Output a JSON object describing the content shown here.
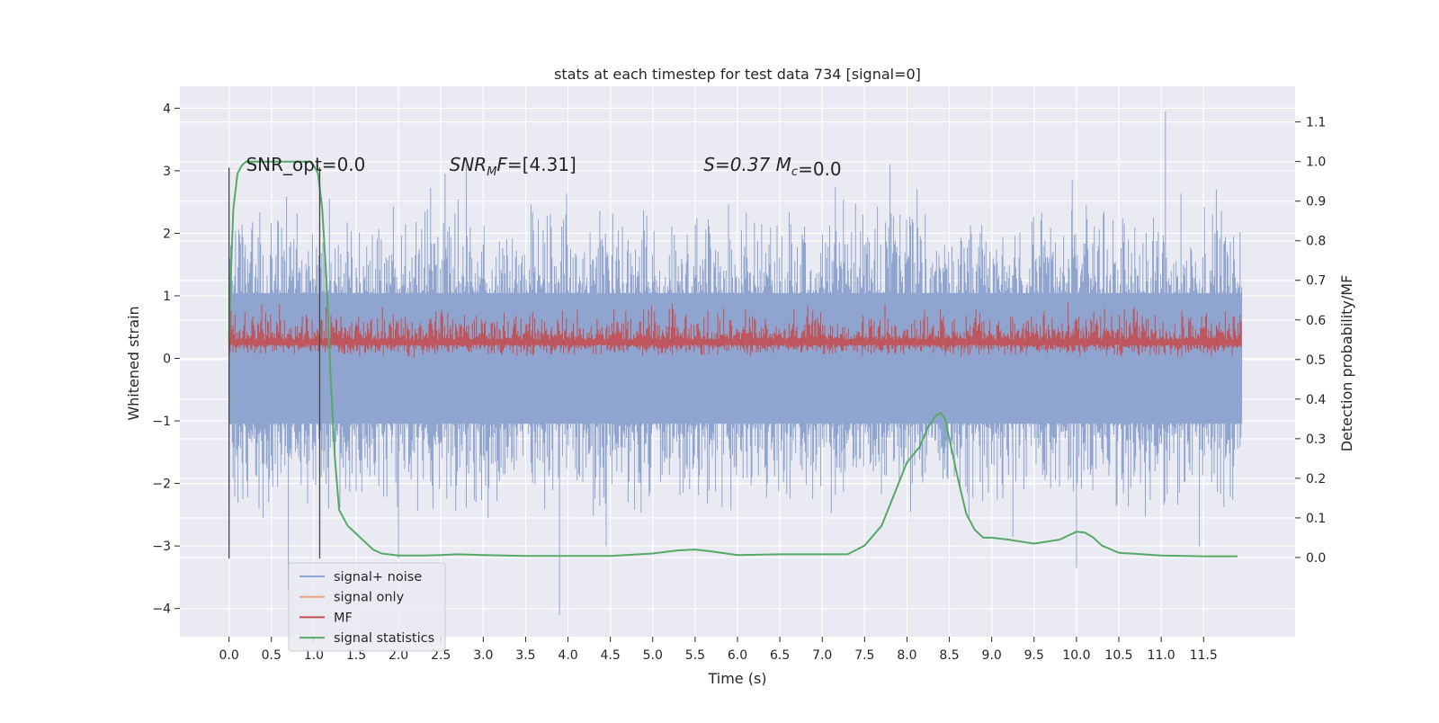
{
  "chart_data": {
    "type": "line",
    "title": "stats at each timestep for test data 734 [signal=0]",
    "xlabel": "Time (s)",
    "ylabel": "Whitened strain",
    "ylabel_right": "Detection probability/MF",
    "xlim": [
      -0.58,
      12.58
    ],
    "ylim": [
      -4.45,
      4.35
    ],
    "ylim_right": [
      -0.2,
      1.19
    ],
    "grid": true,
    "x_ticks": [
      0.0,
      0.5,
      1.0,
      1.5,
      2.0,
      2.5,
      3.0,
      3.5,
      4.0,
      4.5,
      5.0,
      5.5,
      6.0,
      6.5,
      7.0,
      7.5,
      8.0,
      8.5,
      9.0,
      9.5,
      10.0,
      10.5,
      11.0,
      11.5
    ],
    "x_tick_labels": [
      "0.0",
      "0.5",
      "1.0",
      "1.5",
      "2.0",
      "2.5",
      "3.0",
      "3.5",
      "4.0",
      "4.5",
      "5.0",
      "5.5",
      "6.0",
      "6.5",
      "7.0",
      "7.5",
      "8.0",
      "8.5",
      "9.0",
      "9.5",
      "10.0",
      "10.5",
      "11.0",
      "11.5"
    ],
    "y_ticks": [
      -4,
      -3,
      -2,
      -1,
      0,
      1,
      2,
      3,
      4
    ],
    "y_tick_labels": [
      "−4",
      "−3",
      "−2",
      "−1",
      "0",
      "1",
      "2",
      "3",
      "4"
    ],
    "y_ticks_right": [
      0.0,
      0.1,
      0.2,
      0.3,
      0.4,
      0.5,
      0.6,
      0.7,
      0.8,
      0.9,
      1.0,
      1.1
    ],
    "y_tick_labels_right": [
      "0.0",
      "0.1",
      "0.2",
      "0.3",
      "0.4",
      "0.5",
      "0.6",
      "0.7",
      "0.8",
      "0.9",
      "1.0",
      "1.1"
    ],
    "annotations": [
      {
        "text": "SNR_opt=0.0",
        "x": 0.2,
        "y": 3.0
      },
      {
        "text": "SNR",
        "sub": "M",
        "tail": "F=[4.31]",
        "x": 2.6,
        "y": 3.0
      },
      {
        "text": "S=0.37   M",
        "sub": "c",
        "tail": "=0.0",
        "x": 5.6,
        "y": 3.0
      }
    ],
    "vertical_lines": [
      {
        "x": 0.0,
        "y0": -3.2,
        "y1": 3.05
      },
      {
        "x": 1.07,
        "y0": -3.2,
        "y1": 3.05
      }
    ],
    "legend_position": "lower left",
    "series": [
      {
        "name": "signal+ noise",
        "color": "#8fa5cf",
        "axis": "left",
        "x_range": [
          0.0,
          11.95
        ],
        "typical_range": [
          -1.9,
          1.9
        ],
        "peaks": [
          {
            "x": 0.7,
            "y": -3.7
          },
          {
            "x": 2.0,
            "y": -3.2
          },
          {
            "x": 2.55,
            "y": 2.95
          },
          {
            "x": 2.8,
            "y": 3.1
          },
          {
            "x": 3.9,
            "y": -4.1
          },
          {
            "x": 4.45,
            "y": -3.0
          },
          {
            "x": 7.8,
            "y": 3.1
          },
          {
            "x": 9.25,
            "y": -2.85
          },
          {
            "x": 9.95,
            "y": 2.85
          },
          {
            "x": 10.0,
            "y": -3.35
          },
          {
            "x": 11.05,
            "y": 3.95
          },
          {
            "x": 11.45,
            "y": -3.0
          },
          {
            "x": 11.65,
            "y": 2.7
          }
        ]
      },
      {
        "name": "signal only",
        "color": "#e8a283",
        "axis": "left",
        "x": [
          0.0,
          11.95
        ],
        "y": [
          0.0,
          0.0
        ]
      },
      {
        "name": "MF",
        "color": "#c44e52",
        "axis": "left",
        "x_range": [
          0.0,
          11.95
        ],
        "typical_range": [
          0.05,
          0.55
        ],
        "max": 0.9
      },
      {
        "name": "signal statistics",
        "color": "#55a868",
        "axis": "right",
        "x": [
          0.0,
          0.02,
          0.05,
          0.1,
          0.15,
          0.2,
          0.3,
          0.5,
          0.7,
          0.85,
          0.95,
          1.0,
          1.05,
          1.1,
          1.15,
          1.2,
          1.25,
          1.3,
          1.4,
          1.5,
          1.6,
          1.7,
          1.8,
          2.0,
          2.3,
          2.5,
          2.7,
          3.0,
          3.5,
          4.0,
          4.5,
          5.0,
          5.3,
          5.5,
          5.7,
          6.0,
          6.5,
          7.0,
          7.3,
          7.5,
          7.7,
          7.85,
          8.0,
          8.15,
          8.25,
          8.35,
          8.4,
          8.45,
          8.5,
          8.6,
          8.7,
          8.8,
          8.9,
          9.0,
          9.2,
          9.5,
          9.8,
          10.0,
          10.1,
          10.2,
          10.3,
          10.5,
          11.0,
          11.5,
          11.9
        ],
        "y": [
          0.55,
          0.7,
          0.88,
          0.97,
          0.99,
          1.0,
          1.0,
          1.0,
          1.0,
          1.0,
          1.0,
          0.99,
          0.97,
          0.88,
          0.7,
          0.45,
          0.25,
          0.12,
          0.08,
          0.06,
          0.04,
          0.02,
          0.01,
          0.005,
          0.005,
          0.006,
          0.008,
          0.006,
          0.004,
          0.004,
          0.004,
          0.01,
          0.018,
          0.02,
          0.015,
          0.006,
          0.008,
          0.008,
          0.008,
          0.03,
          0.08,
          0.16,
          0.24,
          0.28,
          0.33,
          0.36,
          0.365,
          0.35,
          0.3,
          0.2,
          0.11,
          0.07,
          0.05,
          0.05,
          0.045,
          0.035,
          0.045,
          0.065,
          0.063,
          0.05,
          0.03,
          0.012,
          0.005,
          0.003,
          0.003
        ]
      }
    ]
  }
}
